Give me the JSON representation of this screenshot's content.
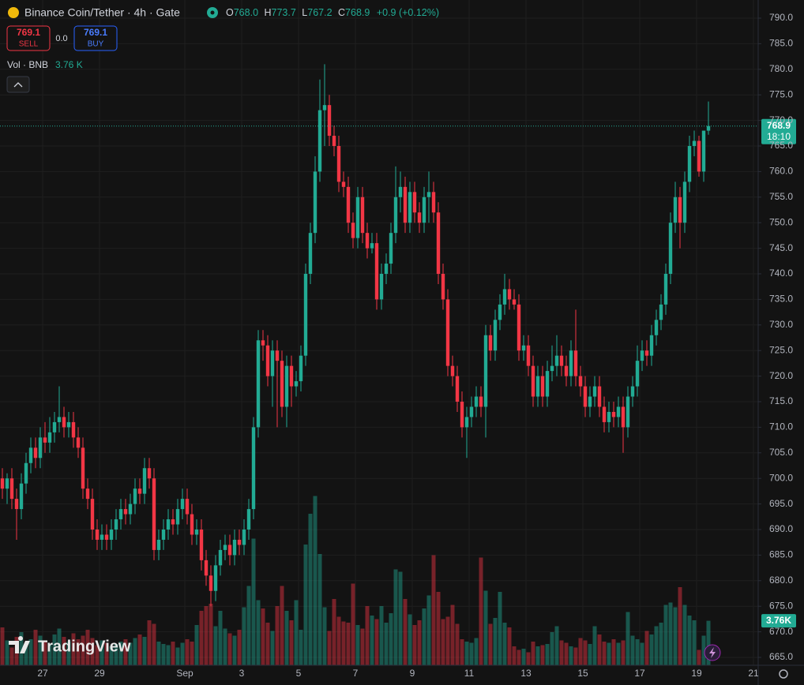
{
  "chart_data": {
    "type": "candlestick",
    "title": "Binance Coin/Tether · 4h · Gate",
    "legend": {
      "o_key": "O",
      "o": "768.0",
      "h_key": "H",
      "h": "773.7",
      "l_key": "L",
      "l": "767.2",
      "c_key": "C",
      "c": "768.9",
      "change": "+0.9 (+0.12%)"
    },
    "trade": {
      "sell_price": "769.1",
      "sell": "SELL",
      "spread": "0.0",
      "buy_price": "769.1",
      "buy": "BUY"
    },
    "volume_title": "Vol · BNB",
    "volume_value": "3.76 K",
    "last_price_label": "768.9",
    "countdown": "18:10",
    "volume_axis_label": "3.76K",
    "brand": "TradingView",
    "up_color": "#22ab94",
    "down_color": "#f23645",
    "open": [
      700,
      698,
      700,
      696,
      694,
      699,
      703,
      706,
      704,
      708,
      707,
      709,
      711,
      712,
      710,
      711,
      708,
      706,
      698,
      696,
      690,
      688,
      689,
      688,
      690,
      692,
      694,
      693,
      695,
      698,
      697,
      702,
      700,
      686,
      688,
      690,
      692,
      691,
      694,
      696,
      693,
      689,
      690,
      684,
      681,
      678,
      683,
      686,
      687,
      685,
      688,
      687,
      690,
      694,
      710,
      727,
      726,
      720,
      725,
      723,
      714,
      722,
      718,
      719,
      724,
      740,
      748,
      760,
      772,
      773,
      767,
      765,
      758,
      757,
      750,
      747,
      755,
      748,
      745,
      746,
      735,
      740,
      742,
      748,
      755,
      757,
      750,
      756,
      752,
      750,
      755,
      756,
      752,
      740,
      735,
      722,
      720,
      715,
      710,
      712,
      714,
      716,
      714,
      728,
      725,
      731,
      734,
      737,
      735,
      734,
      725,
      726,
      722,
      716,
      720,
      716,
      721,
      722,
      724,
      722,
      720,
      725,
      720,
      718,
      714,
      716,
      718,
      714,
      711,
      713,
      712,
      714,
      710,
      716,
      718,
      723,
      725,
      724,
      728,
      731,
      734,
      740,
      750,
      755,
      750,
      758,
      765,
      766,
      760,
      768
    ],
    "high": [
      702,
      701,
      702,
      698,
      701,
      705,
      708,
      708,
      710,
      711,
      712,
      713,
      718,
      714,
      713,
      713,
      710,
      708,
      700,
      698,
      692,
      691,
      691,
      692,
      694,
      696,
      696,
      697,
      700,
      700,
      704,
      704,
      702,
      690,
      692,
      694,
      694,
      696,
      698,
      698,
      695,
      692,
      692,
      686,
      683,
      685,
      688,
      689,
      689,
      690,
      690,
      692,
      696,
      712,
      729,
      729,
      728,
      727,
      727,
      725,
      724,
      724,
      721,
      726,
      742,
      750,
      763,
      778,
      781,
      775,
      769,
      767,
      760,
      759,
      752,
      757,
      757,
      750,
      748,
      748,
      742,
      744,
      750,
      761,
      760,
      759,
      758,
      758,
      754,
      757,
      760,
      758,
      754,
      742,
      737,
      724,
      722,
      717,
      714,
      716,
      718,
      718,
      730,
      730,
      733,
      736,
      740,
      739,
      737,
      736,
      728,
      728,
      724,
      722,
      722,
      723,
      726,
      728,
      726,
      724,
      727,
      733,
      722,
      720,
      718,
      720,
      720,
      716,
      715,
      715,
      716,
      716,
      718,
      720,
      726,
      727,
      727,
      730,
      733,
      736,
      742,
      752,
      758,
      757,
      760,
      767,
      768,
      767,
      768,
      773.7
    ],
    "low": [
      696,
      695,
      694,
      688,
      692,
      697,
      701,
      702,
      702,
      705,
      705,
      707,
      709,
      708,
      708,
      706,
      704,
      696,
      694,
      688,
      686,
      686,
      686,
      686,
      688,
      690,
      691,
      691,
      693,
      695,
      695,
      698,
      684,
      684,
      686,
      688,
      689,
      689,
      692,
      691,
      687,
      687,
      682,
      679,
      675,
      676,
      681,
      684,
      683,
      683,
      685,
      685,
      688,
      692,
      708,
      723,
      718,
      714,
      710,
      712,
      710,
      714,
      716,
      717,
      722,
      738,
      746,
      758,
      765,
      765,
      763,
      756,
      755,
      748,
      745,
      745,
      746,
      743,
      744,
      733,
      733,
      738,
      740,
      746,
      752,
      748,
      748,
      750,
      748,
      748,
      750,
      750,
      738,
      733,
      720,
      718,
      713,
      708,
      704,
      710,
      712,
      712,
      708,
      723,
      723,
      729,
      732,
      733,
      733,
      723,
      723,
      720,
      714,
      714,
      714,
      714,
      719,
      720,
      720,
      718,
      718,
      718,
      716,
      712,
      712,
      714,
      712,
      709,
      709,
      710,
      710,
      705,
      708,
      714,
      716,
      721,
      722,
      722,
      726,
      729,
      732,
      738,
      748,
      745,
      748,
      756,
      763,
      759,
      758,
      767.2
    ],
    "close": [
      698,
      700,
      696,
      694,
      699,
      703,
      706,
      704,
      708,
      707,
      709,
      711,
      712,
      710,
      711,
      708,
      706,
      698,
      696,
      690,
      688,
      689,
      688,
      690,
      692,
      694,
      693,
      695,
      698,
      697,
      702,
      700,
      686,
      688,
      690,
      692,
      691,
      694,
      696,
      693,
      689,
      690,
      684,
      681,
      678,
      683,
      686,
      687,
      685,
      688,
      687,
      690,
      694,
      710,
      727,
      726,
      720,
      725,
      723,
      714,
      722,
      718,
      719,
      724,
      740,
      748,
      760,
      772,
      773,
      767,
      765,
      758,
      757,
      750,
      747,
      755,
      748,
      745,
      746,
      735,
      740,
      742,
      748,
      755,
      757,
      750,
      756,
      752,
      750,
      755,
      756,
      752,
      740,
      735,
      722,
      720,
      715,
      710,
      712,
      714,
      716,
      714,
      728,
      725,
      731,
      734,
      737,
      735,
      734,
      725,
      726,
      722,
      716,
      720,
      716,
      721,
      722,
      724,
      722,
      720,
      725,
      720,
      718,
      714,
      716,
      718,
      714,
      711,
      713,
      712,
      714,
      710,
      716,
      718,
      723,
      725,
      724,
      728,
      731,
      734,
      740,
      750,
      755,
      750,
      758,
      765,
      766,
      760,
      768,
      768.9
    ],
    "volume": [
      3.2,
      2.1,
      1.5,
      2.4,
      2.8,
      1.9,
      2.2,
      3.0,
      2.5,
      2.0,
      1.8,
      2.6,
      3.1,
      2.4,
      2.0,
      2.7,
      2.2,
      2.5,
      3.0,
      2.3,
      1.7,
      2.1,
      1.9,
      1.6,
      1.8,
      2.0,
      2.2,
      1.9,
      2.3,
      2.6,
      2.4,
      3.8,
      3.5,
      2.0,
      1.8,
      1.7,
      2.0,
      1.5,
      1.9,
      2.2,
      2.0,
      3.4,
      4.6,
      5.0,
      5.2,
      3.3,
      4.6,
      3.1,
      2.7,
      2.5,
      3.0,
      4.9,
      6.7,
      10.7,
      5.5,
      4.8,
      3.6,
      2.9,
      5.0,
      6.7,
      4.6,
      3.8,
      5.5,
      3.0,
      10.2,
      12.8,
      14.3,
      9.4,
      4.9,
      2.9,
      5.6,
      4.1,
      3.7,
      3.6,
      6.9,
      3.4,
      3.1,
      5.0,
      4.2,
      3.9,
      5.0,
      3.6,
      4.4,
      8.1,
      7.9,
      5.6,
      4.3,
      3.4,
      3.8,
      4.8,
      5.9,
      9.3,
      6.2,
      3.9,
      4.1,
      5.1,
      3.5,
      2.2,
      2.0,
      1.9,
      2.3,
      9.1,
      6.3,
      3.5,
      4.0,
      6.2,
      3.6,
      3.2,
      1.6,
      1.3,
      1.4,
      1.1,
      2.0,
      1.6,
      1.7,
      1.8,
      2.8,
      3.3,
      2.1,
      1.9,
      1.6,
      1.5,
      2.3,
      2.1,
      1.8,
      3.3,
      2.6,
      2.0,
      1.9,
      2.2,
      1.9,
      2.1,
      4.5,
      2.5,
      2.2,
      1.9,
      2.9,
      2.6,
      3.3,
      3.6,
      5.1,
      5.3,
      4.9,
      6.6,
      5.1,
      4.2,
      3.8,
      1.3,
      2.5,
      3.76
    ],
    "xlim": [
      0,
      160
    ],
    "xticks": [
      {
        "value": 9,
        "label": "27"
      },
      {
        "value": 21,
        "label": "29"
      },
      {
        "value": 39,
        "label": "Sep"
      },
      {
        "value": 51,
        "label": "3"
      },
      {
        "value": 63,
        "label": "5"
      },
      {
        "value": 75,
        "label": "7"
      },
      {
        "value": 87,
        "label": "9"
      },
      {
        "value": 99,
        "label": "11"
      },
      {
        "value": 111,
        "label": "13"
      },
      {
        "value": 123,
        "label": "15"
      },
      {
        "value": 135,
        "label": "17"
      },
      {
        "value": 147,
        "label": "19"
      },
      {
        "value": 159,
        "label": "21"
      }
    ],
    "ylim": [
      665,
      790
    ],
    "yticks": [
      {
        "value": 665,
        "label": "665.0"
      },
      {
        "value": 670,
        "label": "670.0"
      },
      {
        "value": 675,
        "label": "675.0"
      },
      {
        "value": 680,
        "label": "680.0"
      },
      {
        "value": 685,
        "label": "685.0"
      },
      {
        "value": 690,
        "label": "690.0"
      },
      {
        "value": 695,
        "label": "695.0"
      },
      {
        "value": 700,
        "label": "700.0"
      },
      {
        "value": 705,
        "label": "705.0"
      },
      {
        "value": 710,
        "label": "710.0"
      },
      {
        "value": 715,
        "label": "715.0"
      },
      {
        "value": 720,
        "label": "720.0"
      },
      {
        "value": 725,
        "label": "725.0"
      },
      {
        "value": 730,
        "label": "730.0"
      },
      {
        "value": 735,
        "label": "735.0"
      },
      {
        "value": 740,
        "label": "740.0"
      },
      {
        "value": 745,
        "label": "745.0"
      },
      {
        "value": 750,
        "label": "750.0"
      },
      {
        "value": 755,
        "label": "755.0"
      },
      {
        "value": 760,
        "label": "760.0"
      },
      {
        "value": 765,
        "label": "765.0"
      },
      {
        "value": 770,
        "label": "770.0"
      },
      {
        "value": 775,
        "label": "775.0"
      },
      {
        "value": 780,
        "label": "780.0"
      },
      {
        "value": 785,
        "label": "785.0"
      },
      {
        "value": 790,
        "label": "790.0"
      }
    ],
    "grid": true
  }
}
